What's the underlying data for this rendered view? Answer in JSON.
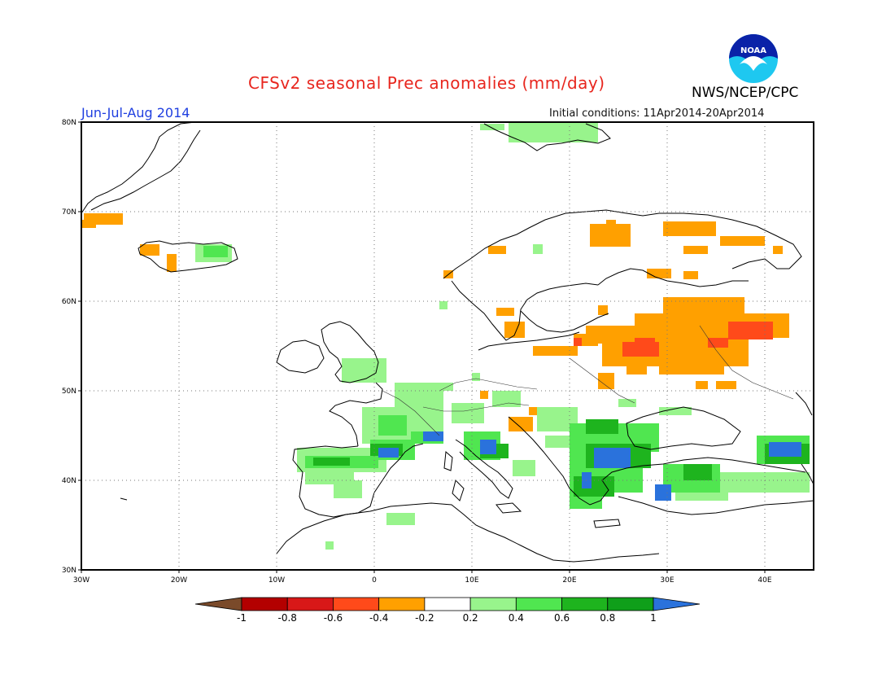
{
  "header": {
    "title": "CFSv2 seasonal Prec anomalies (mm/day)",
    "season": "Jun-Jul-Aug 2014",
    "initial_conditions": "Initial conditions: 11Apr2014-20Apr2014",
    "agency": "NWS/NCEP/CPC",
    "logo_text": "NOAA"
  },
  "map": {
    "lat_labels": [
      "80N",
      "70N",
      "60N",
      "50N",
      "40N",
      "30N"
    ],
    "lon_labels": [
      "30W",
      "20W",
      "10W",
      "0",
      "10E",
      "20E",
      "30E",
      "40E"
    ],
    "lat_range": [
      30,
      80
    ],
    "lon_range": [
      -30,
      45
    ],
    "grid": true
  },
  "colorbar": {
    "labels": [
      "-1",
      "-0.8",
      "-0.6",
      "-0.4",
      "-0.2",
      "0.2",
      "0.4",
      "0.6",
      "0.8",
      "1"
    ],
    "colors": [
      "#7a4a2a",
      "#b30000",
      "#d81818",
      "#ff4a1a",
      "#ffa000",
      "#ffffff",
      "#98f48c",
      "#50e650",
      "#1eb41e",
      "#0f9f1a",
      "#2a72dc"
    ]
  }
}
